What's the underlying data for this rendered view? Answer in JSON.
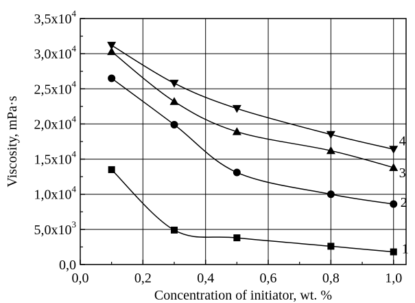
{
  "chart_data": {
    "type": "line",
    "title": "",
    "xlabel": "Concentration of initiator, wt. %",
    "ylabel": "Viscosity, mPa·s",
    "xlim": [
      0.0,
      1.04
    ],
    "ylim": [
      0,
      35000
    ],
    "grid": true,
    "x_ticks": [
      0.0,
      0.2,
      0.4,
      0.6,
      0.8,
      1.0
    ],
    "x_tick_labels": [
      "0,0",
      "0,2",
      "0,4",
      "0,6",
      "0,8",
      "1,0"
    ],
    "y_ticks": [
      0,
      5000,
      10000,
      15000,
      20000,
      25000,
      30000,
      35000
    ],
    "y_tick_labels": [
      {
        "base": "0,0",
        "exp": ""
      },
      {
        "base": "5,0x10",
        "exp": "3"
      },
      {
        "base": "1,0x10",
        "exp": "4"
      },
      {
        "base": "1,5x10",
        "exp": "4"
      },
      {
        "base": "2,0x10",
        "exp": "4"
      },
      {
        "base": "2,5x10",
        "exp": "4"
      },
      {
        "base": "3,0x10",
        "exp": "4"
      },
      {
        "base": "3,5x10",
        "exp": "4"
      }
    ],
    "series": [
      {
        "label": "1",
        "marker": "square",
        "x": [
          0.1,
          0.3,
          0.5,
          0.8,
          1.0
        ],
        "values": [
          13500,
          4900,
          3800,
          2600,
          1800
        ]
      },
      {
        "label": "2",
        "marker": "circle",
        "x": [
          0.1,
          0.3,
          0.5,
          0.8,
          1.0
        ],
        "values": [
          26500,
          19900,
          13100,
          10000,
          8600
        ]
      },
      {
        "label": "3",
        "marker": "triangle-up",
        "x": [
          0.1,
          0.3,
          0.5,
          0.8,
          1.0
        ],
        "values": [
          30300,
          23200,
          18900,
          16200,
          13800
        ]
      },
      {
        "label": "4",
        "marker": "triangle-down",
        "x": [
          0.1,
          0.3,
          0.5,
          0.8,
          1.0
        ],
        "values": [
          31200,
          25800,
          22200,
          18500,
          16400
        ]
      }
    ]
  }
}
